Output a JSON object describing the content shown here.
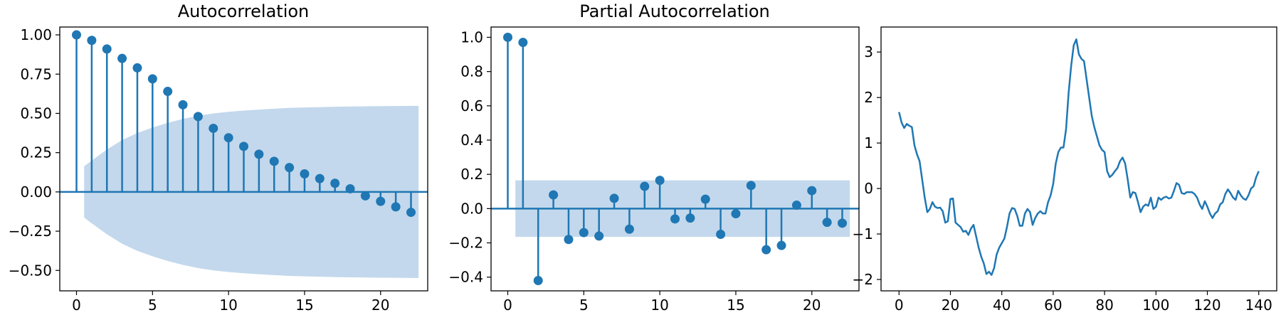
{
  "chart_data": [
    {
      "type": "stem",
      "title": "Autocorrelation",
      "xlabel": "",
      "ylabel": "",
      "xlim": [
        -1.1,
        23.1
      ],
      "ylim": [
        -0.63,
        1.05
      ],
      "grid": false,
      "color": "#1f77b4",
      "band_color": "#c3d8ec",
      "xticks": [
        0,
        5,
        10,
        15,
        20
      ],
      "yticks": [
        1.0,
        0.75,
        0.5,
        0.25,
        0.0,
        -0.25,
        -0.5
      ],
      "xtick_labels": [
        "0",
        "5",
        "10",
        "15",
        "20"
      ],
      "ytick_labels": [
        "1.00",
        "0.75",
        "0.50",
        "0.25",
        "0.00",
        "−0.25",
        "−0.50"
      ],
      "x": [
        0,
        1,
        2,
        3,
        4,
        5,
        6,
        7,
        8,
        9,
        10,
        11,
        12,
        13,
        14,
        15,
        16,
        17,
        18,
        19,
        20,
        21,
        22
      ],
      "values": [
        1.0,
        0.965,
        0.91,
        0.85,
        0.79,
        0.72,
        0.64,
        0.555,
        0.48,
        0.405,
        0.345,
        0.29,
        0.24,
        0.195,
        0.155,
        0.115,
        0.085,
        0.055,
        0.02,
        -0.025,
        -0.06,
        -0.095,
        -0.13
      ],
      "confidence_band": {
        "x": [
          0.5,
          1,
          2,
          3,
          4,
          5,
          6,
          7,
          8,
          9,
          10,
          11,
          12,
          13,
          14,
          15,
          16,
          17,
          18,
          19,
          20,
          21,
          22,
          22.5
        ],
        "upper": [
          0.163,
          0.2,
          0.27,
          0.33,
          0.375,
          0.41,
          0.44,
          0.465,
          0.485,
          0.5,
          0.51,
          0.518,
          0.524,
          0.53,
          0.535,
          0.538,
          0.54,
          0.542,
          0.544,
          0.545,
          0.546,
          0.547,
          0.548,
          0.548
        ]
      }
    },
    {
      "type": "stem",
      "title": "Partial Autocorrelation",
      "xlabel": "",
      "ylabel": "",
      "xlim": [
        -1.1,
        23.1
      ],
      "ylim": [
        -0.48,
        1.06
      ],
      "grid": false,
      "color": "#1f77b4",
      "band_color": "#c3d8ec",
      "xticks": [
        0,
        5,
        10,
        15,
        20
      ],
      "yticks": [
        1.0,
        0.8,
        0.6,
        0.4,
        0.2,
        0.0,
        -0.2,
        -0.4
      ],
      "xtick_labels": [
        "0",
        "5",
        "10",
        "15",
        "20"
      ],
      "ytick_labels": [
        "1.0",
        "0.8",
        "0.6",
        "0.4",
        "0.2",
        "0.0",
        "−0.2",
        "−0.4"
      ],
      "x": [
        0,
        1,
        2,
        3,
        4,
        5,
        6,
        7,
        8,
        9,
        10,
        11,
        12,
        13,
        14,
        15,
        16,
        17,
        18,
        19,
        20,
        21,
        22
      ],
      "values": [
        1.0,
        0.97,
        -0.42,
        0.08,
        -0.18,
        -0.14,
        -0.16,
        0.06,
        -0.12,
        0.13,
        0.165,
        -0.06,
        -0.055,
        0.055,
        -0.15,
        -0.03,
        0.135,
        -0.24,
        -0.215,
        0.02,
        0.105,
        -0.08,
        -0.085
      ],
      "confidence_band": {
        "x": [
          0.5,
          22.5
        ],
        "upper": [
          0.165,
          0.165
        ]
      }
    },
    {
      "type": "line",
      "title": "",
      "xlabel": "",
      "ylabel": "",
      "xlim": [
        -7,
        147
      ],
      "ylim": [
        -2.25,
        3.55
      ],
      "grid": false,
      "color": "#1f77b4",
      "xticks": [
        0,
        20,
        40,
        60,
        80,
        100,
        120,
        140
      ],
      "yticks": [
        3,
        2,
        1,
        0,
        -1,
        -2
      ],
      "xtick_labels": [
        "0",
        "20",
        "40",
        "60",
        "80",
        "100",
        "120",
        "140"
      ],
      "ytick_labels": [
        "3",
        "2",
        "1",
        "0",
        "−1",
        "−2"
      ],
      "points": [
        [
          0,
          1.68
        ],
        [
          1,
          1.45
        ],
        [
          2,
          1.33
        ],
        [
          3,
          1.42
        ],
        [
          4,
          1.38
        ],
        [
          5,
          1.35
        ],
        [
          6,
          0.95
        ],
        [
          7,
          0.75
        ],
        [
          8,
          0.6
        ],
        [
          9,
          0.2
        ],
        [
          10,
          -0.2
        ],
        [
          11,
          -0.52
        ],
        [
          12,
          -0.45
        ],
        [
          13,
          -0.3
        ],
        [
          14,
          -0.4
        ],
        [
          15,
          -0.43
        ],
        [
          16,
          -0.42
        ],
        [
          17,
          -0.5
        ],
        [
          18,
          -0.75
        ],
        [
          19,
          -0.72
        ],
        [
          20,
          -0.23
        ],
        [
          21,
          -0.22
        ],
        [
          22,
          -0.75
        ],
        [
          23,
          -0.8
        ],
        [
          24,
          -0.85
        ],
        [
          25,
          -0.95
        ],
        [
          26,
          -0.93
        ],
        [
          27,
          -1.02
        ],
        [
          28,
          -0.88
        ],
        [
          29,
          -0.8
        ],
        [
          30,
          -1.05
        ],
        [
          31,
          -1.3
        ],
        [
          32,
          -1.5
        ],
        [
          33,
          -1.65
        ],
        [
          34,
          -1.88
        ],
        [
          35,
          -1.83
        ],
        [
          36,
          -1.9
        ],
        [
          37,
          -1.75
        ],
        [
          38,
          -1.45
        ],
        [
          39,
          -1.3
        ],
        [
          40,
          -1.2
        ],
        [
          41,
          -1.1
        ],
        [
          42,
          -0.85
        ],
        [
          43,
          -0.55
        ],
        [
          44,
          -0.43
        ],
        [
          45,
          -0.45
        ],
        [
          46,
          -0.6
        ],
        [
          47,
          -0.82
        ],
        [
          48,
          -0.82
        ],
        [
          49,
          -0.55
        ],
        [
          50,
          -0.45
        ],
        [
          51,
          -0.52
        ],
        [
          52,
          -0.8
        ],
        [
          53,
          -0.65
        ],
        [
          54,
          -0.55
        ],
        [
          55,
          -0.5
        ],
        [
          56,
          -0.55
        ],
        [
          57,
          -0.55
        ],
        [
          58,
          -0.3
        ],
        [
          59,
          -0.15
        ],
        [
          60,
          0.1
        ],
        [
          61,
          0.55
        ],
        [
          62,
          0.8
        ],
        [
          63,
          0.9
        ],
        [
          64,
          0.9
        ],
        [
          65,
          1.3
        ],
        [
          66,
          2.1
        ],
        [
          67,
          2.7
        ],
        [
          68,
          3.15
        ],
        [
          69,
          3.28
        ],
        [
          70,
          2.95
        ],
        [
          71,
          2.85
        ],
        [
          72,
          2.8
        ],
        [
          73,
          2.4
        ],
        [
          74,
          2.0
        ],
        [
          75,
          1.6
        ],
        [
          76,
          1.35
        ],
        [
          77,
          1.15
        ],
        [
          78,
          0.95
        ],
        [
          79,
          0.85
        ],
        [
          80,
          0.8
        ],
        [
          81,
          0.38
        ],
        [
          82,
          0.25
        ],
        [
          83,
          0.3
        ],
        [
          84,
          0.38
        ],
        [
          85,
          0.45
        ],
        [
          86,
          0.6
        ],
        [
          87,
          0.68
        ],
        [
          88,
          0.55
        ],
        [
          89,
          0.2
        ],
        [
          90,
          -0.2
        ],
        [
          91,
          -0.08
        ],
        [
          92,
          -0.1
        ],
        [
          93,
          -0.3
        ],
        [
          94,
          -0.52
        ],
        [
          95,
          -0.4
        ],
        [
          96,
          -0.35
        ],
        [
          97,
          -0.38
        ],
        [
          98,
          -0.2
        ],
        [
          99,
          -0.45
        ],
        [
          100,
          -0.4
        ],
        [
          101,
          -0.2
        ],
        [
          102,
          -0.25
        ],
        [
          103,
          -0.2
        ],
        [
          104,
          -0.18
        ],
        [
          105,
          -0.22
        ],
        [
          106,
          -0.2
        ],
        [
          107,
          -0.05
        ],
        [
          108,
          0.12
        ],
        [
          109,
          0.08
        ],
        [
          110,
          -0.1
        ],
        [
          111,
          -0.12
        ],
        [
          112,
          -0.08
        ],
        [
          113,
          -0.08
        ],
        [
          114,
          -0.08
        ],
        [
          115,
          -0.12
        ],
        [
          116,
          -0.2
        ],
        [
          117,
          -0.35
        ],
        [
          118,
          -0.45
        ],
        [
          119,
          -0.28
        ],
        [
          120,
          -0.4
        ],
        [
          121,
          -0.55
        ],
        [
          122,
          -0.65
        ],
        [
          123,
          -0.55
        ],
        [
          124,
          -0.5
        ],
        [
          125,
          -0.35
        ],
        [
          126,
          -0.3
        ],
        [
          127,
          -0.12
        ],
        [
          128,
          -0.02
        ],
        [
          129,
          -0.1
        ],
        [
          130,
          -0.2
        ],
        [
          131,
          -0.25
        ],
        [
          132,
          -0.05
        ],
        [
          133,
          -0.15
        ],
        [
          134,
          -0.22
        ],
        [
          135,
          -0.25
        ],
        [
          136,
          -0.15
        ],
        [
          137,
          0.0
        ],
        [
          138,
          0.05
        ],
        [
          139,
          0.25
        ],
        [
          140,
          0.38
        ]
      ]
    }
  ]
}
